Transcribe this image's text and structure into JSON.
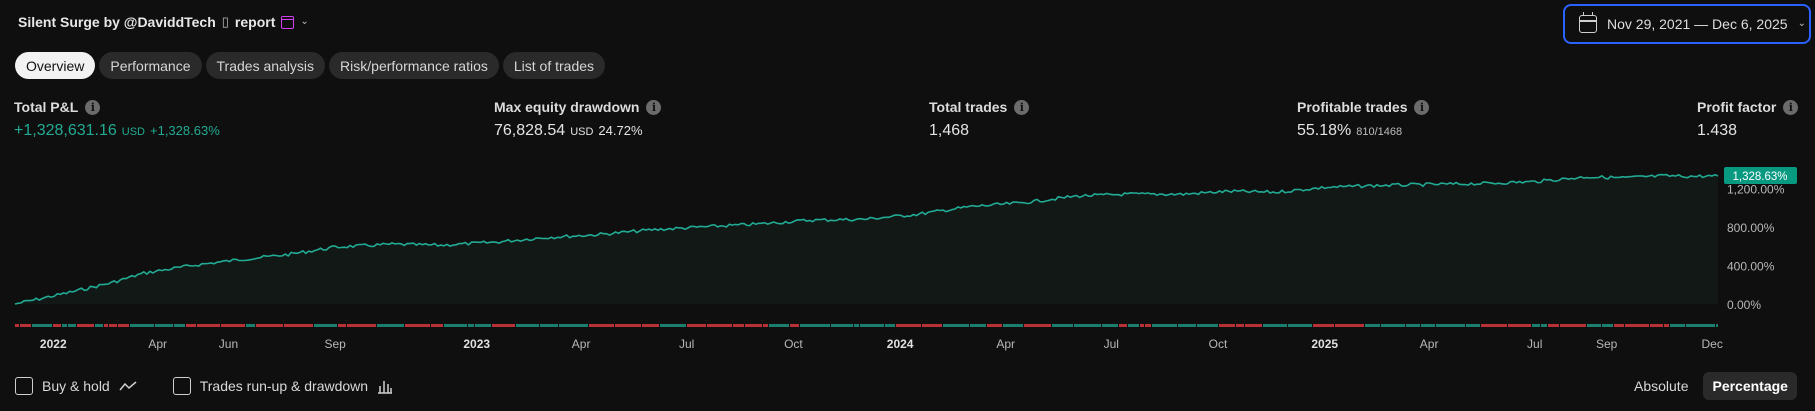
{
  "header": {
    "title": "Silent Surge by @DaviddTech",
    "glyph": "▯",
    "report_label": "report",
    "chevron": "⌄",
    "date_range": "Nov 29, 2021 — Dec 6, 2025"
  },
  "tabs": [
    {
      "label": "Overview",
      "active": true
    },
    {
      "label": "Performance",
      "active": false
    },
    {
      "label": "Trades analysis",
      "active": false
    },
    {
      "label": "Risk/performance ratios",
      "active": false
    },
    {
      "label": "List of trades",
      "active": false
    }
  ],
  "stats": {
    "total_pnl": {
      "label": "Total P&L",
      "value": "+1,328,631.16",
      "unit": "USD",
      "sub": "+1,328.63%"
    },
    "max_dd": {
      "label": "Max equity drawdown",
      "value": "76,828.54",
      "unit": "USD",
      "sub": "24.72%"
    },
    "total_trades": {
      "label": "Total trades",
      "value": "1,468"
    },
    "profitable": {
      "label": "Profitable trades",
      "value": "55.18%",
      "sub": "810/1468"
    },
    "profit_factor": {
      "label": "Profit factor",
      "value": "1.438"
    }
  },
  "info_glyph": "i",
  "chart_data": {
    "type": "area",
    "y_ticks": [
      "0.00%",
      "400.00%",
      "800.00%",
      "1,200.00%"
    ],
    "y_tick_values": [
      0,
      400,
      800,
      1200
    ],
    "ylim": [
      0,
      1328.63
    ],
    "last_value_label": "1,328.63%",
    "x_ticks": [
      {
        "label": "2022",
        "year": true,
        "date": "2022-01-01"
      },
      {
        "label": "Apr",
        "year": false,
        "date": "2022-04-01"
      },
      {
        "label": "Jun",
        "year": false,
        "date": "2022-06-01"
      },
      {
        "label": "Sep",
        "year": false,
        "date": "2022-09-01"
      },
      {
        "label": "2023",
        "year": true,
        "date": "2023-01-01"
      },
      {
        "label": "Apr",
        "year": false,
        "date": "2023-04-01"
      },
      {
        "label": "Jul",
        "year": false,
        "date": "2023-07-01"
      },
      {
        "label": "Oct",
        "year": false,
        "date": "2023-10-01"
      },
      {
        "label": "2024",
        "year": true,
        "date": "2024-01-01"
      },
      {
        "label": "Apr",
        "year": false,
        "date": "2024-04-01"
      },
      {
        "label": "Jul",
        "year": false,
        "date": "2024-07-01"
      },
      {
        "label": "Oct",
        "year": false,
        "date": "2024-10-01"
      },
      {
        "label": "2025",
        "year": true,
        "date": "2025-01-01"
      },
      {
        "label": "Apr",
        "year": false,
        "date": "2025-04-01"
      },
      {
        "label": "Jul",
        "year": false,
        "date": "2025-07-01"
      },
      {
        "label": "Sep",
        "year": false,
        "date": "2025-09-01"
      },
      {
        "label": "Dec",
        "year": false,
        "date": "2025-12-01"
      }
    ],
    "x_range": [
      "2021-11-29",
      "2025-12-06"
    ],
    "series": [
      {
        "x": [
          "2021-11-29",
          "2022-01-15",
          "2022-02-20",
          "2022-03-20",
          "2022-05-01",
          "2022-06-10",
          "2022-07-20",
          "2022-09-01",
          "2022-10-20",
          "2022-12-01",
          "2023-01-15",
          "2023-03-01",
          "2023-04-15",
          "2023-06-01",
          "2023-07-15",
          "2023-09-01",
          "2023-10-15",
          "2023-12-01",
          "2024-01-15",
          "2024-03-01",
          "2024-04-15",
          "2024-06-01",
          "2024-07-15",
          "2024-09-01",
          "2024-10-10",
          "2024-11-20",
          "2025-01-01",
          "2025-02-15",
          "2025-04-01",
          "2025-05-15",
          "2025-07-01",
          "2025-08-15",
          "2025-09-15",
          "2025-10-20",
          "2025-11-15",
          "2025-12-06"
        ],
        "values": [
          0,
          120,
          220,
          320,
          400,
          460,
          510,
          590,
          620,
          610,
          640,
          690,
          720,
          770,
          800,
          830,
          870,
          880,
          930,
          1010,
          1050,
          1120,
          1140,
          1140,
          1170,
          1160,
          1210,
          1230,
          1240,
          1250,
          1270,
          1320,
          1310,
          1330,
          1325,
          1328.63
        ]
      }
    ],
    "line_color": "#22ab94",
    "fill_color": "#121816",
    "win_color": "#1a7f6e",
    "loss_color": "#b83137"
  },
  "controls": {
    "buy_hold": "Buy & hold",
    "runup": "Trades run-up & drawdown",
    "absolute": "Absolute",
    "percentage": "Percentage"
  }
}
